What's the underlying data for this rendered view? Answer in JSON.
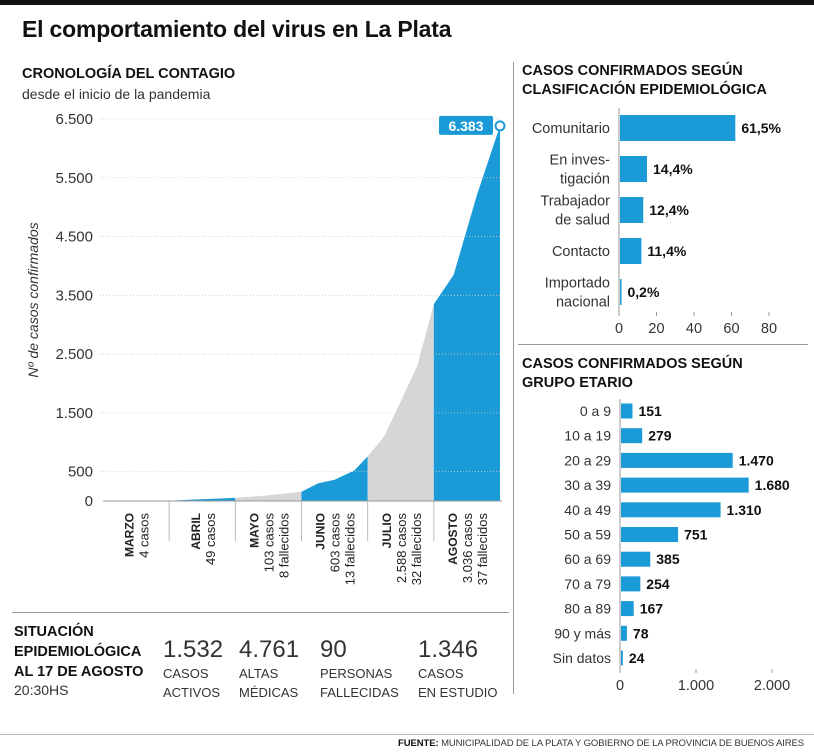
{
  "title": "El comportamiento del virus en La Plata",
  "timeline": {
    "heading": "CRONOLOGÍA DEL CONTAGIO",
    "subheading": "desde el inicio de la pandemia",
    "ylabel": "Nº de casos confirmados",
    "yticks": [
      {
        "value": 0,
        "label": "0"
      },
      {
        "value": 500,
        "label": "500"
      },
      {
        "value": 1500,
        "label": "1.500"
      },
      {
        "value": 2500,
        "label": "2.500"
      },
      {
        "value": 3500,
        "label": "3.500"
      },
      {
        "value": 4500,
        "label": "4.500"
      },
      {
        "value": 5500,
        "label": "5.500"
      },
      {
        "value": 6500,
        "label": "6.500"
      }
    ],
    "final_label": "6.383",
    "months": [
      {
        "name": "MARZO",
        "cases": "4 casos",
        "deaths": ""
      },
      {
        "name": "ABRIL",
        "cases": "49 casos",
        "deaths": ""
      },
      {
        "name": "MAYO",
        "cases": "103 casos",
        "deaths": "8 fallecidos"
      },
      {
        "name": "JUNIO",
        "cases": "603 casos",
        "deaths": "13 fallecidos"
      },
      {
        "name": "JULIO",
        "cases": "2.588 casos",
        "deaths": "32 fallecidos"
      },
      {
        "name": "AGOSTO",
        "cases": "3.036 casos",
        "deaths": "37 fallecidos"
      }
    ]
  },
  "classification": {
    "heading_line1": "CASOS CONFIRMADOS SEGÚN",
    "heading_line2": "CLASIFICACIÓN EPIDEMIOLÓGICA",
    "items": [
      {
        "label_lines": [
          "Comunitario"
        ],
        "value": 61.5,
        "value_label": "61,5%"
      },
      {
        "label_lines": [
          "En inves-",
          "tigación"
        ],
        "value": 14.4,
        "value_label": "14,4%"
      },
      {
        "label_lines": [
          "Trabajador",
          "de salud"
        ],
        "value": 12.4,
        "value_label": "12,4%"
      },
      {
        "label_lines": [
          "Contacto"
        ],
        "value": 11.4,
        "value_label": "11,4%"
      },
      {
        "label_lines": [
          "Importado",
          "nacional"
        ],
        "value": 0.2,
        "value_label": "0,2%"
      }
    ],
    "xticks": [
      {
        "value": 0,
        "label": "0"
      },
      {
        "value": 20,
        "label": "20"
      },
      {
        "value": 40,
        "label": "40"
      },
      {
        "value": 60,
        "label": "60"
      },
      {
        "value": 80,
        "label": "80"
      }
    ]
  },
  "age": {
    "heading_line1": "CASOS CONFIRMADOS SEGÚN",
    "heading_line2": "GRUPO ETARIO",
    "items": [
      {
        "label": "0 a 9",
        "value": 151,
        "value_label": "151"
      },
      {
        "label": "10 a 19",
        "value": 279,
        "value_label": "279"
      },
      {
        "label": "20 a 29",
        "value": 1470,
        "value_label": "1.470"
      },
      {
        "label": "30 a 39",
        "value": 1680,
        "value_label": "1.680"
      },
      {
        "label": "40 a 49",
        "value": 1310,
        "value_label": "1.310"
      },
      {
        "label": "50 a 59",
        "value": 751,
        "value_label": "751"
      },
      {
        "label": "60 a 69",
        "value": 385,
        "value_label": "385"
      },
      {
        "label": "70 a 79",
        "value": 254,
        "value_label": "254"
      },
      {
        "label": "80 a 89",
        "value": 167,
        "value_label": "167"
      },
      {
        "label": "90 y más",
        "value": 78,
        "value_label": "78"
      },
      {
        "label": "Sin datos",
        "value": 24,
        "value_label": "24"
      }
    ],
    "xticks": [
      {
        "value": 0,
        "label": "0"
      },
      {
        "value": 1000,
        "label": "1.000"
      },
      {
        "value": 2000,
        "label": "2.000"
      }
    ]
  },
  "situation": {
    "heading_lines": [
      "SITUACIÓN",
      "EPIDEMIOLÓGICA",
      "AL 17 DE AGOSTO"
    ],
    "time": "20:30HS",
    "stats": [
      {
        "value": "1.532",
        "label_lines": [
          "CASOS",
          "ACTIVOS"
        ]
      },
      {
        "value": "4.761",
        "label_lines": [
          "ALTAS",
          "MÉDICAS"
        ]
      },
      {
        "value": "90",
        "label_lines": [
          "PERSONAS",
          "FALLECIDAS"
        ]
      },
      {
        "value": "1.346",
        "label_lines": [
          "CASOS",
          "EN ESTUDIO"
        ]
      }
    ]
  },
  "footer": {
    "source_label": "FUENTE:",
    "source_text": "MUNICIPALIDAD DE LA PLATA Y GOBIERNO DE LA PROVINCIA DE BUENOS AIRES"
  },
  "colors": {
    "accent": "#1a9ad6",
    "gray": "#d6d6d6",
    "text": "#222222"
  },
  "chart_data": [
    {
      "type": "area",
      "title": "CRONOLOGÍA DEL CONTAGIO",
      "subtitle": "desde el inicio de la pandemia",
      "ylabel": "Nº de casos confirmados",
      "ylim": [
        0,
        6500
      ],
      "x_categories": [
        "MARZO",
        "ABRIL",
        "MAYO",
        "JUNIO",
        "JULIO",
        "AGOSTO"
      ],
      "monthly_new_cases": [
        4,
        49,
        103,
        603,
        2588,
        3036
      ],
      "monthly_deaths": [
        0,
        0,
        8,
        13,
        32,
        37
      ],
      "cumulative_points": [
        {
          "month": "MARZO",
          "t": 0.0,
          "y": 0
        },
        {
          "month": "MARZO",
          "t": 1.0,
          "y": 4
        },
        {
          "month": "ABRIL",
          "t": 0.3,
          "y": 20
        },
        {
          "month": "ABRIL",
          "t": 1.0,
          "y": 53
        },
        {
          "month": "MAYO",
          "t": 0.5,
          "y": 95
        },
        {
          "month": "MAYO",
          "t": 1.0,
          "y": 156
        },
        {
          "month": "JUNIO",
          "t": 0.25,
          "y": 300
        },
        {
          "month": "JUNIO",
          "t": 0.5,
          "y": 360
        },
        {
          "month": "JUNIO",
          "t": 0.8,
          "y": 520
        },
        {
          "month": "JUNIO",
          "t": 1.0,
          "y": 759
        },
        {
          "month": "JULIO",
          "t": 0.25,
          "y": 1100
        },
        {
          "month": "JULIO",
          "t": 0.5,
          "y": 1700
        },
        {
          "month": "JULIO",
          "t": 0.75,
          "y": 2300
        },
        {
          "month": "JULIO",
          "t": 1.0,
          "y": 3347
        },
        {
          "month": "AGOSTO",
          "t": 0.3,
          "y": 3850
        },
        {
          "month": "AGOSTO",
          "t": 0.65,
          "y": 5200
        },
        {
          "month": "AGOSTO",
          "t": 1.0,
          "y": 6383
        }
      ],
      "highlighted_months": [
        "ABRIL",
        "JUNIO",
        "AGOSTO"
      ],
      "final_value": 6383,
      "grid": false
    },
    {
      "type": "bar",
      "orientation": "horizontal",
      "title": "CASOS CONFIRMADOS SEGÚN CLASIFICACIÓN EPIDEMIOLÓGICA",
      "categories": [
        "Comunitario",
        "En investigación",
        "Trabajador de salud",
        "Contacto",
        "Importado nacional"
      ],
      "values": [
        61.5,
        14.4,
        12.4,
        11.4,
        0.2
      ],
      "unit": "%",
      "xlim": [
        0,
        80
      ],
      "grid": false
    },
    {
      "type": "bar",
      "orientation": "horizontal",
      "title": "CASOS CONFIRMADOS SEGÚN GRUPO ETARIO",
      "categories": [
        "0 a 9",
        "10 a 19",
        "20 a 29",
        "30 a 39",
        "40 a 49",
        "50 a 59",
        "60 a 69",
        "70 a 79",
        "80 a 89",
        "90 y más",
        "Sin datos"
      ],
      "values": [
        151,
        279,
        1470,
        1680,
        1310,
        751,
        385,
        254,
        167,
        78,
        24
      ],
      "xlim": [
        0,
        2000
      ],
      "grid": false
    }
  ]
}
